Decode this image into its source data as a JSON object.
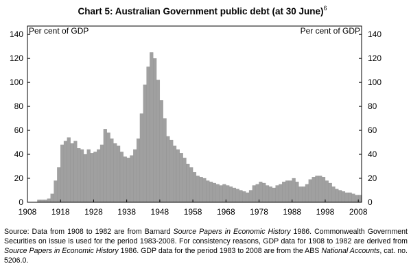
{
  "chart_data": {
    "type": "bar",
    "title": "Chart 5: Australian Government public debt (at 30 June)",
    "title_note": "6",
    "y_label": "Per cent of GDP",
    "y2_label": "Per cent of GDP",
    "color": "#a0a0a0",
    "x": [
      1911,
      1912,
      1913,
      1914,
      1915,
      1916,
      1917,
      1918,
      1919,
      1920,
      1921,
      1922,
      1923,
      1924,
      1925,
      1926,
      1927,
      1928,
      1929,
      1930,
      1931,
      1932,
      1933,
      1934,
      1935,
      1936,
      1937,
      1938,
      1939,
      1940,
      1941,
      1942,
      1943,
      1944,
      1945,
      1946,
      1947,
      1948,
      1949,
      1950,
      1951,
      1952,
      1953,
      1954,
      1955,
      1956,
      1957,
      1958,
      1959,
      1960,
      1961,
      1962,
      1963,
      1964,
      1965,
      1966,
      1967,
      1968,
      1969,
      1970,
      1971,
      1972,
      1973,
      1974,
      1975,
      1976,
      1977,
      1978,
      1979,
      1980,
      1981,
      1982,
      1983,
      1984,
      1985,
      1986,
      1987,
      1988,
      1989,
      1990,
      1991,
      1992,
      1993,
      1994,
      1995,
      1996,
      1997,
      1998,
      1999,
      2000,
      2001,
      2002,
      2003,
      2004,
      2005,
      2006,
      2007,
      2008
    ],
    "values": [
      2,
      2,
      2,
      3,
      7,
      18,
      29,
      48,
      51,
      54,
      49,
      51,
      45,
      44,
      40,
      44,
      41,
      42,
      44,
      48,
      61,
      58,
      53,
      49,
      47,
      42,
      38,
      37,
      39,
      44,
      53,
      74,
      98,
      113,
      125,
      120,
      102,
      85,
      70,
      55,
      52,
      47,
      44,
      41,
      37,
      32,
      29,
      25,
      22,
      21,
      20,
      18,
      17,
      16,
      15,
      14,
      15,
      14,
      13,
      12,
      11,
      10,
      9,
      8,
      10,
      14,
      15,
      17,
      16,
      14,
      13,
      12,
      14,
      15,
      17,
      18,
      18,
      20,
      17,
      13,
      13,
      15,
      19,
      21,
      22,
      22,
      21,
      18,
      16,
      13,
      11,
      10,
      9,
      8,
      8,
      7,
      6,
      6
    ],
    "xlim": [
      1908,
      2009
    ],
    "xticks": [
      1908,
      1918,
      1928,
      1938,
      1948,
      1958,
      1968,
      1978,
      1988,
      1998,
      2008
    ],
    "ylim": [
      0,
      147
    ],
    "yticks": [
      0,
      20,
      40,
      60,
      80,
      100,
      120,
      140
    ],
    "y2lim": [
      0,
      147
    ],
    "y2ticks": [
      0,
      20,
      40,
      60,
      80,
      100,
      120,
      140
    ],
    "source": [
      "Source: Data from 1908 to 1982 are from Barnard ",
      "Source Papers in Economic History",
      " 1986. Commonwealth Government Securities on issue is used for the period 1983-2008. For consistency reasons, GDP data for 1908 to 1982 are derived from ",
      "Source Papers in Economic History",
      " 1986. GDP data for the period 1983 to 2008 are from the ABS ",
      "National Accounts",
      ", cat. no. 5206.0."
    ]
  }
}
